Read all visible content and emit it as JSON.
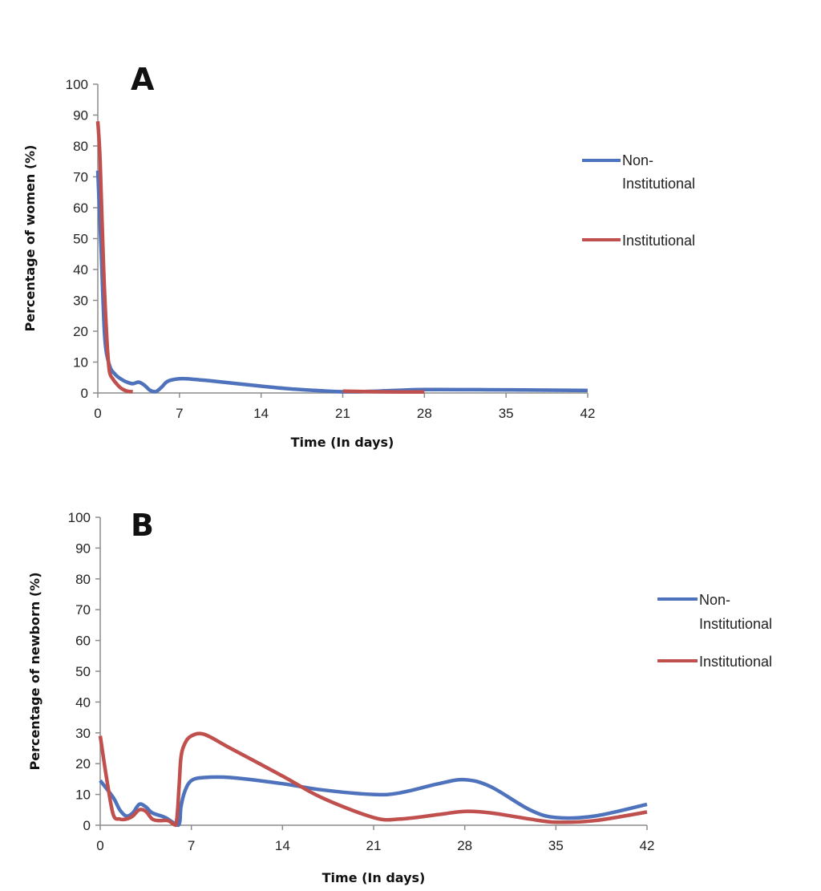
{
  "chart_data": [
    {
      "type": "line",
      "panel_label": "A",
      "title": "",
      "xlabel": "Time (In days)",
      "ylabel": "Percentage of women (%)",
      "xlim": [
        0,
        42
      ],
      "ylim": [
        0,
        100
      ],
      "xticks": [
        "0",
        "7",
        "14",
        "21",
        "28",
        "35",
        "42"
      ],
      "yticks": [
        "0",
        "10",
        "20",
        "30",
        "40",
        "50",
        "60",
        "70",
        "80",
        "90",
        "100"
      ],
      "legend_placement": "right",
      "series": [
        {
          "name": "Non-Institutional",
          "color": "#4f72bd",
          "x": [
            0,
            0.3,
            0.6,
            1,
            1.5,
            2,
            2.5,
            3,
            3.5,
            4,
            4.5,
            5,
            5.5,
            6,
            7,
            8,
            10,
            14,
            17,
            21,
            24,
            28,
            35,
            42
          ],
          "y": [
            72,
            45,
            18,
            9,
            6,
            4.5,
            3.5,
            3,
            3.5,
            2.5,
            0.8,
            0.5,
            2,
            3.8,
            4.6,
            4.5,
            3.8,
            2.2,
            1.2,
            0.4,
            0.6,
            1.1,
            1,
            0.8
          ]
        },
        {
          "name": "Institutional",
          "color": "#c0504d",
          "x": [
            0,
            0.2,
            0.5,
            0.8,
            1,
            1.3,
            1.6,
            2,
            2.5,
            3,
            "",
            21,
            24,
            28
          ],
          "y": [
            88,
            75,
            40,
            16,
            7,
            4.5,
            3,
            1.5,
            0.6,
            0.4,
            null,
            0.6,
            0.4,
            0.3
          ]
        }
      ]
    },
    {
      "type": "line",
      "panel_label": "B",
      "title": "",
      "xlabel": "Time (In days)",
      "ylabel": "Percentage of newborn (%)",
      "xlim": [
        0,
        42
      ],
      "ylim": [
        0,
        100
      ],
      "xticks": [
        "0",
        "7",
        "14",
        "21",
        "28",
        "35",
        "42"
      ],
      "yticks": [
        "0",
        "10",
        "20",
        "30",
        "40",
        "50",
        "60",
        "70",
        "80",
        "90",
        "100"
      ],
      "legend_placement": "right",
      "series": [
        {
          "name": "Non-Institutional",
          "color": "#4f72bd",
          "x": [
            0,
            1,
            1.5,
            2,
            2.5,
            3,
            3.5,
            4,
            5,
            6,
            6.2,
            6.5,
            7,
            8,
            10,
            14,
            17,
            21,
            23,
            26,
            28,
            30,
            33,
            35,
            38,
            42
          ],
          "y": [
            14.5,
            9,
            5,
            3,
            4,
            6.8,
            6,
            4,
            2.5,
            0,
            6,
            11,
            14.5,
            15.5,
            15.5,
            13.5,
            11.5,
            10,
            10.5,
            13.5,
            14.8,
            12.5,
            5,
            2.5,
            3,
            6.8
          ]
        },
        {
          "name": "Institutional",
          "color": "#c0504d",
          "x": [
            0,
            0.5,
            1,
            1.5,
            2,
            2.5,
            3,
            3.5,
            4,
            4.5,
            5.2,
            5.8,
            6.05,
            6.2,
            6.5,
            7,
            8,
            10,
            14,
            17,
            21,
            23,
            26,
            28,
            30,
            33,
            35,
            38,
            42
          ],
          "y": [
            29,
            15,
            3.5,
            2,
            2,
            3,
            5,
            4.5,
            2,
            1.5,
            1.5,
            0,
            12,
            22,
            26.5,
            29,
            29.5,
            25,
            16,
            9,
            2.5,
            2,
            3.5,
            4.5,
            4,
            2,
            1,
            1.5,
            4.3
          ]
        }
      ]
    }
  ]
}
